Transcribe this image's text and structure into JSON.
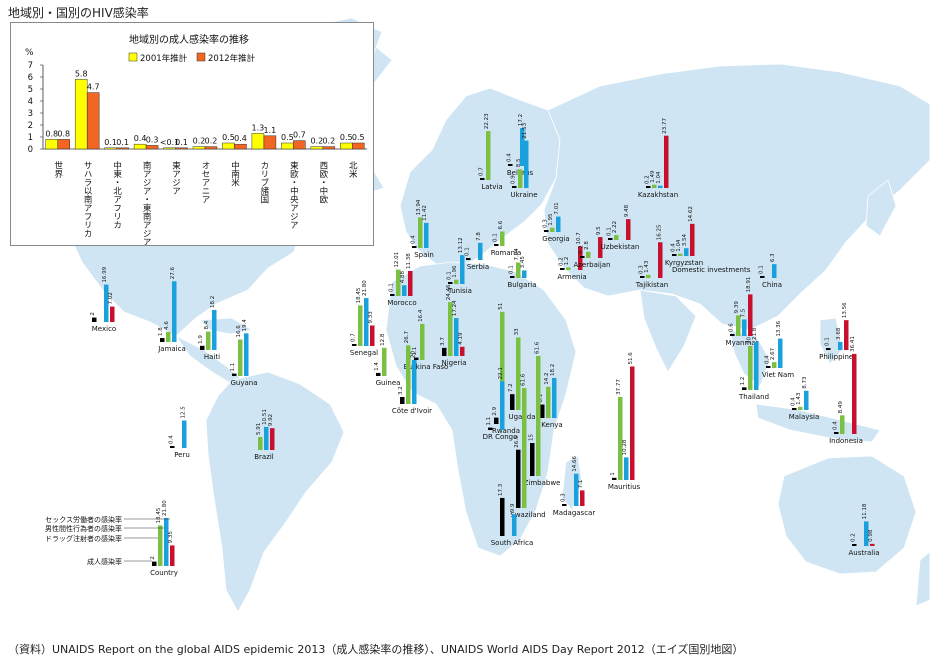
{
  "page": {
    "title": "地域別・国別のHIV感染率",
    "source": "（資料）UNAIDS Report on the global AIDS epidemic 2013（成人感染率の推移）、UNAIDS World AIDS Day Report 2012（エイズ国別地図）"
  },
  "colors": {
    "ocean": "#ffffff",
    "land": "#cfe5f3",
    "border": "#ffffff",
    "adult": "#000000",
    "sex_worker": "#c8102e",
    "msm": "#1aa0dc",
    "idu": "#7ac143",
    "y2001": "#ffff00",
    "y2012": "#f26522"
  },
  "chart_data": [
    {
      "type": "bar",
      "title": "地域別の成人感染率の推移",
      "ylabel": "%",
      "ylim": [
        0,
        7
      ],
      "yticks": [
        "0",
        "1",
        "2",
        "3",
        "4",
        "5",
        "6",
        "7"
      ],
      "categories": [
        "世界",
        "サハラ以南アフリカ",
        "中東・北アフリカ",
        "南アジア・東南アジア",
        "東アジア",
        "オセアニア",
        "中南米",
        "カリブ諸国",
        "東欧・中央アジア",
        "西欧・中欧",
        "北米"
      ],
      "series": [
        {
          "name": "2001年推計",
          "values": [
            0.8,
            5.8,
            0.1,
            0.4,
            0.1,
            0.2,
            0.5,
            1.3,
            0.5,
            0.2,
            0.5
          ],
          "labels": [
            "0.8",
            "5.8",
            "0.1",
            "0.4",
            "<0.1",
            "0.2",
            "0.5",
            "1.3",
            "0.5",
            "0.2",
            "0.5"
          ]
        },
        {
          "name": "2012年推計",
          "values": [
            0.8,
            4.7,
            0.1,
            0.3,
            0.1,
            0.2,
            0.4,
            1.1,
            0.7,
            0.2,
            0.5
          ],
          "labels": [
            "0.8",
            "4.7",
            "0.1",
            "0.3",
            "0.1",
            "0.2",
            "0.4",
            "1.1",
            "0.7",
            "0.2",
            "0.5"
          ]
        }
      ]
    },
    {
      "type": "bar",
      "title": "",
      "series_names": [
        "成人感染率",
        "ドラッグ注射者の感染率",
        "男性間性行為者の感染率",
        "セックス労働者の感染率"
      ],
      "legend_example": {
        "label": "Country",
        "values": [
          "2",
          "18.45",
          "21.80",
          "9.35"
        ]
      },
      "countries": [
        {
          "name": "Mexico",
          "values": [
            "2",
            "",
            "16.99",
            "7.02"
          ]
        },
        {
          "name": "Jamaica",
          "values": [
            "1.8",
            "4.6",
            "27.6",
            ""
          ]
        },
        {
          "name": "Haiti",
          "values": [
            "1.9",
            "8.4",
            "18.2",
            ""
          ]
        },
        {
          "name": "Guyana",
          "values": [
            "1.1",
            "16.6",
            "19.4",
            ""
          ]
        },
        {
          "name": "Peru",
          "values": [
            "0.4",
            "",
            "12.5",
            ""
          ]
        },
        {
          "name": "Brazil",
          "values": [
            "",
            "5.91",
            "10.51",
            "9.92"
          ]
        },
        {
          "name": "Spain",
          "values": [
            "0.4",
            "13.94",
            "11.42",
            ""
          ]
        },
        {
          "name": "Morocco",
          "values": [
            "0.1",
            "12.01",
            "4.88",
            "11.38"
          ]
        },
        {
          "name": "Tunisia",
          "values": [
            "0.1",
            "1.96",
            "13.12",
            ""
          ]
        },
        {
          "name": "Senegal",
          "values": [
            "0.7",
            "18.45",
            "21.80",
            "9.33"
          ]
        },
        {
          "name": "Guinea",
          "values": [
            "1.4",
            "12.8",
            "",
            ""
          ]
        },
        {
          "name": "Burkina Faso",
          "values": [
            "1.1",
            "16.4",
            "",
            ""
          ]
        },
        {
          "name": "Côte d'Ivoir",
          "values": [
            "3.2",
            "26.7",
            "20",
            ""
          ]
        },
        {
          "name": "Nigeria",
          "values": [
            "3.7",
            "24.46",
            "17.24",
            "4.19"
          ]
        },
        {
          "name": "Serbia",
          "values": [
            "0.1",
            "",
            "7.8",
            ""
          ]
        },
        {
          "name": "Romania",
          "values": [
            "0.1",
            "6.6",
            "",
            ""
          ]
        },
        {
          "name": "Bulgaria",
          "values": [
            "0.1",
            "7.04",
            "3.45",
            ""
          ]
        },
        {
          "name": "Latvia",
          "values": [
            "0.7",
            "22.23",
            "",
            ""
          ]
        },
        {
          "name": "Belarus",
          "values": [
            "0.4",
            "",
            "17.2",
            ""
          ]
        },
        {
          "name": "Ukraine",
          "values": [
            "0.9",
            "8.5",
            "21.53",
            ""
          ]
        },
        {
          "name": "Georgia",
          "values": [
            "0.3",
            "1.95",
            "7.01",
            ""
          ]
        },
        {
          "name": "Armenia",
          "values": [
            "0.2",
            "1.2",
            "",
            "10.7"
          ]
        },
        {
          "name": "Azerbaijan",
          "values": [
            "0.2",
            "2.8",
            "",
            "9.5"
          ]
        },
        {
          "name": "Uzbekistan",
          "values": [
            "0.1",
            "2.22",
            "",
            "9.48"
          ]
        },
        {
          "name": "Kazakhstan",
          "values": [
            "0.2",
            "1.49",
            "1.04",
            "23.77"
          ]
        },
        {
          "name": "Kyrgyzstan",
          "values": [
            "0.4",
            "1.04",
            "3.54",
            "14.62"
          ]
        },
        {
          "name": "Tajikistan",
          "values": [
            "0.3",
            "1.43",
            "",
            "16.25"
          ]
        },
        {
          "name": "China",
          "values": [
            "0.1",
            "",
            "6.3",
            ""
          ]
        },
        {
          "name": "Myanmar",
          "values": [
            "0.6",
            "9.39",
            "7.5",
            "18.91"
          ]
        },
        {
          "name": "Thailand",
          "values": [
            "1.2",
            "20",
            "21.8",
            ""
          ]
        },
        {
          "name": "Viet Nam",
          "values": [
            "0.4",
            "2.67",
            "13.36",
            ""
          ]
        },
        {
          "name": "Malaysia",
          "values": [
            "0.4",
            "1.43",
            "8.73",
            ""
          ]
        },
        {
          "name": "Philippines",
          "values": [
            "0.1",
            "",
            "3.68",
            "13.56"
          ]
        },
        {
          "name": "Indonesia",
          "values": [
            "0.4",
            "8.49",
            "",
            "36.41"
          ]
        },
        {
          "name": "Uganda",
          "values": [
            "7.2",
            "33",
            "",
            ""
          ]
        },
        {
          "name": "Rwanda",
          "values": [
            "2.9",
            "51",
            "",
            ""
          ]
        },
        {
          "name": "DR Congo",
          "values": [
            "1.1",
            "",
            "22.1",
            ""
          ]
        },
        {
          "name": "Kenya",
          "values": [
            "6.1",
            "14.2",
            "18.2",
            ""
          ]
        },
        {
          "name": "Zimbabwe",
          "values": [
            "15",
            "61.6",
            "",
            ""
          ]
        },
        {
          "name": "Swaziland",
          "values": [
            "26.5",
            "61.6",
            "",
            ""
          ]
        },
        {
          "name": "South Africa",
          "values": [
            "17.3",
            "",
            "9.9",
            ""
          ]
        },
        {
          "name": "Madagascar",
          "values": [
            "0.3",
            "",
            "14.66",
            "7.1"
          ]
        },
        {
          "name": "Mauritius",
          "values": [
            "1",
            "37.77",
            "10.28",
            "51.6"
          ]
        },
        {
          "name": "Australia",
          "values": [
            "0.2",
            "",
            "11.18",
            "0.98"
          ]
        }
      ],
      "annotations": [
        "Domestic investments"
      ]
    }
  ]
}
